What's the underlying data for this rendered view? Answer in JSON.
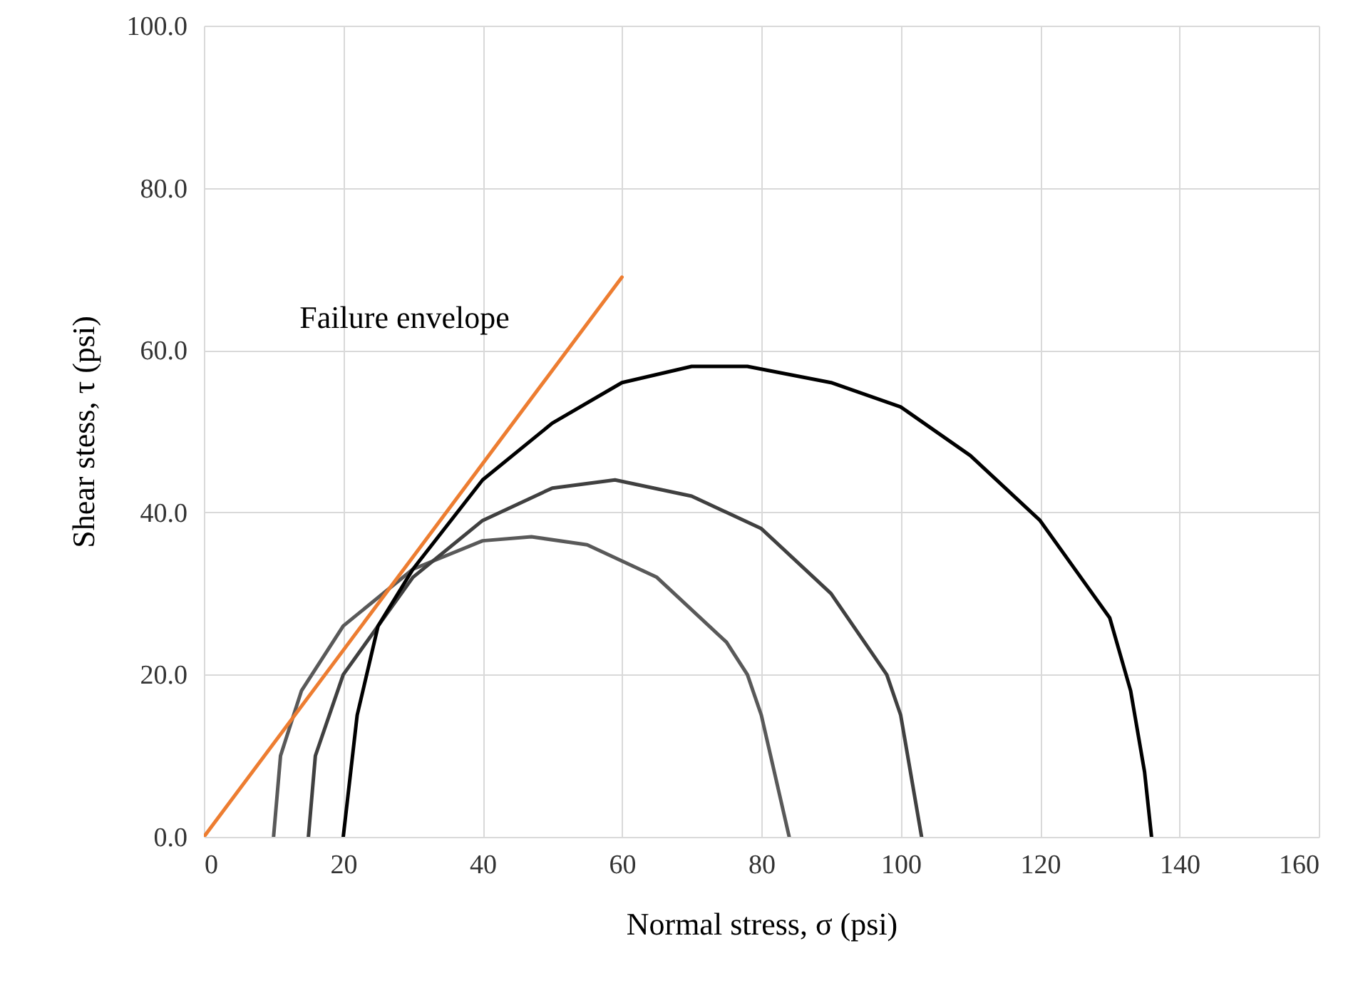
{
  "chart_data": {
    "type": "line",
    "xlabel": "Normal stress, σ (psi)",
    "ylabel": "Shear stess, τ (psi)",
    "xlim": [
      0,
      160
    ],
    "xticks": [
      0,
      20,
      40,
      60,
      80,
      100,
      120,
      140,
      160
    ],
    "ylim": [
      0,
      100
    ],
    "yticks": [
      {
        "value": 0,
        "label": "0.0"
      },
      {
        "value": 20,
        "label": "20.0"
      },
      {
        "value": 40,
        "label": "40.0"
      },
      {
        "value": 60,
        "label": "60.0"
      },
      {
        "value": 80,
        "label": "80.0"
      },
      {
        "value": 100,
        "label": "100.0"
      }
    ],
    "grid": true,
    "marker": "none",
    "line_style": "solid",
    "series": [
      {
        "color": "#595959",
        "x": [
          10,
          11,
          14,
          20,
          30,
          40,
          47,
          55,
          65,
          75,
          78,
          80,
          84
        ],
        "values": [
          0,
          10,
          18,
          26,
          33,
          36.5,
          37,
          36,
          32,
          24,
          20,
          15,
          0
        ]
      },
      {
        "color": "#404040",
        "x": [
          15,
          16,
          20,
          30,
          40,
          50,
          59,
          70,
          80,
          90,
          98,
          100,
          103
        ],
        "values": [
          0,
          10,
          20,
          32,
          39,
          43,
          44,
          42,
          38,
          30,
          20,
          15,
          0
        ]
      },
      {
        "color": "#000000",
        "x": [
          20,
          22,
          25,
          30,
          40,
          50,
          60,
          70,
          78,
          90,
          100,
          110,
          120,
          130,
          133,
          135,
          136
        ],
        "values": [
          0,
          15,
          26,
          33,
          44,
          51,
          56,
          58,
          58,
          56,
          53,
          47,
          39,
          27,
          18,
          8,
          0
        ]
      },
      {
        "name": "Failure envelope",
        "color": "#ed7d31",
        "x": [
          0,
          60
        ],
        "values": [
          0,
          69
        ]
      }
    ]
  }
}
